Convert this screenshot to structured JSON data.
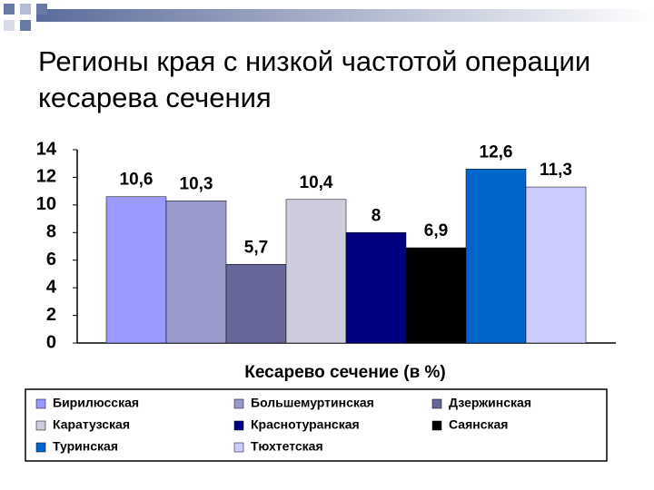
{
  "chart_data": {
    "type": "bar",
    "title": "Регионы края с низкой частотой операции кесарева сечения",
    "x_label": "Кесарево сечение (в %)",
    "categories": [
      null
    ],
    "series": [
      {
        "name": "Бирилюсская",
        "color": "#9999ff",
        "values": [
          10.6
        ],
        "value_labels": [
          "10,6"
        ]
      },
      {
        "name": "Большемуртинская",
        "color": "#9999cc",
        "values": [
          10.3
        ],
        "value_labels": [
          "10,3"
        ]
      },
      {
        "name": "Дзержинская",
        "color": "#666699",
        "values": [
          5.7
        ],
        "value_labels": [
          "5,7"
        ]
      },
      {
        "name": "Каратузская",
        "color": "#ccccdd",
        "values": [
          10.4
        ],
        "value_labels": [
          "10,4"
        ]
      },
      {
        "name": "Краснотуранская",
        "color": "#000080",
        "values": [
          8
        ],
        "value_labels": [
          "8"
        ]
      },
      {
        "name": "Саянская",
        "color": "#000000",
        "values": [
          6.9
        ],
        "value_labels": [
          "6,9"
        ]
      },
      {
        "name": "Туринская",
        "color": "#0066cc",
        "values": [
          12.6
        ],
        "value_labels": [
          "12,6"
        ]
      },
      {
        "name": "Тюхтетская",
        "color": "#ccccff",
        "values": [
          11.3
        ],
        "value_labels": [
          "11,3"
        ]
      }
    ],
    "ylim": [
      0,
      14
    ],
    "yticks": [
      0,
      2,
      4,
      6,
      8,
      10,
      12,
      14
    ],
    "grid": false
  }
}
